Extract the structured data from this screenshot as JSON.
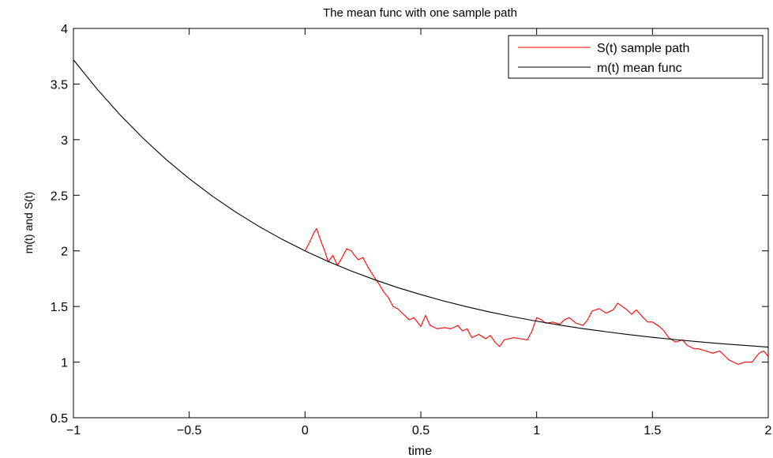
{
  "chart_data": {
    "type": "line",
    "title": "The mean func with one sample path",
    "xlabel": "time",
    "ylabel": "m(t) and S(t)",
    "xlim": [
      -1,
      2
    ],
    "ylim": [
      0.5,
      4
    ],
    "xticks": [
      -1,
      -0.5,
      0,
      0.5,
      1,
      1.5,
      2
    ],
    "xtick_labels": [
      "−1",
      "−0.5",
      "0",
      "0.5",
      "1",
      "1.5",
      "2"
    ],
    "yticks": [
      0.5,
      1,
      1.5,
      2,
      2.5,
      3,
      3.5,
      4
    ],
    "ytick_labels": [
      "0.5",
      "1",
      "1.5",
      "2",
      "2.5",
      "3",
      "3.5",
      "4"
    ],
    "grid": false,
    "legend_position": "top-right",
    "series": [
      {
        "name": "S(t) sample path",
        "color": "#ff0000",
        "x": [
          0,
          0.02,
          0.04,
          0.05,
          0.07,
          0.09,
          0.1,
          0.12,
          0.14,
          0.16,
          0.18,
          0.2,
          0.21,
          0.23,
          0.25,
          0.27,
          0.3,
          0.32,
          0.34,
          0.36,
          0.38,
          0.4,
          0.42,
          0.45,
          0.47,
          0.5,
          0.52,
          0.54,
          0.57,
          0.6,
          0.63,
          0.66,
          0.68,
          0.7,
          0.72,
          0.75,
          0.78,
          0.8,
          0.82,
          0.84,
          0.86,
          0.9,
          0.93,
          0.96,
          0.98,
          1.0,
          1.02,
          1.04,
          1.07,
          1.1,
          1.12,
          1.14,
          1.17,
          1.2,
          1.22,
          1.24,
          1.27,
          1.3,
          1.33,
          1.35,
          1.37,
          1.39,
          1.41,
          1.43,
          1.46,
          1.48,
          1.5,
          1.53,
          1.55,
          1.57,
          1.6,
          1.63,
          1.65,
          1.68,
          1.7,
          1.73,
          1.76,
          1.79,
          1.81,
          1.83,
          1.85,
          1.87,
          1.9,
          1.93,
          1.96,
          1.98,
          2.0
        ],
        "y": [
          2.0,
          2.08,
          2.17,
          2.2,
          2.08,
          1.97,
          1.9,
          1.96,
          1.87,
          1.94,
          2.02,
          2.0,
          1.97,
          1.92,
          1.94,
          1.86,
          1.76,
          1.7,
          1.63,
          1.58,
          1.5,
          1.48,
          1.44,
          1.38,
          1.4,
          1.32,
          1.42,
          1.33,
          1.3,
          1.31,
          1.3,
          1.33,
          1.28,
          1.3,
          1.22,
          1.25,
          1.21,
          1.24,
          1.18,
          1.14,
          1.2,
          1.22,
          1.21,
          1.2,
          1.28,
          1.4,
          1.38,
          1.35,
          1.36,
          1.34,
          1.38,
          1.4,
          1.35,
          1.33,
          1.38,
          1.46,
          1.48,
          1.44,
          1.47,
          1.53,
          1.5,
          1.47,
          1.43,
          1.47,
          1.4,
          1.36,
          1.36,
          1.32,
          1.28,
          1.22,
          1.18,
          1.2,
          1.15,
          1.12,
          1.12,
          1.1,
          1.08,
          1.1,
          1.06,
          1.02,
          1.0,
          0.98,
          1.0,
          1.0,
          1.08,
          1.1,
          1.05
        ]
      },
      {
        "name": "m(t) mean func",
        "color": "#000000",
        "model": "m(t) = 1 + exp(-t)",
        "x": [
          -1,
          -0.9,
          -0.8,
          -0.7,
          -0.6,
          -0.5,
          -0.4,
          -0.3,
          -0.2,
          -0.1,
          0,
          0.1,
          0.2,
          0.3,
          0.4,
          0.5,
          0.6,
          0.7,
          0.8,
          0.9,
          1.0,
          1.1,
          1.2,
          1.3,
          1.4,
          1.5,
          1.6,
          1.7,
          1.8,
          1.9,
          2.0
        ],
        "y": [
          3.718,
          3.46,
          3.226,
          3.014,
          2.822,
          2.649,
          2.492,
          2.35,
          2.221,
          2.105,
          2.0,
          1.905,
          1.819,
          1.741,
          1.67,
          1.607,
          1.549,
          1.497,
          1.449,
          1.407,
          1.368,
          1.333,
          1.301,
          1.273,
          1.247,
          1.223,
          1.202,
          1.183,
          1.165,
          1.15,
          1.135
        ]
      }
    ]
  }
}
